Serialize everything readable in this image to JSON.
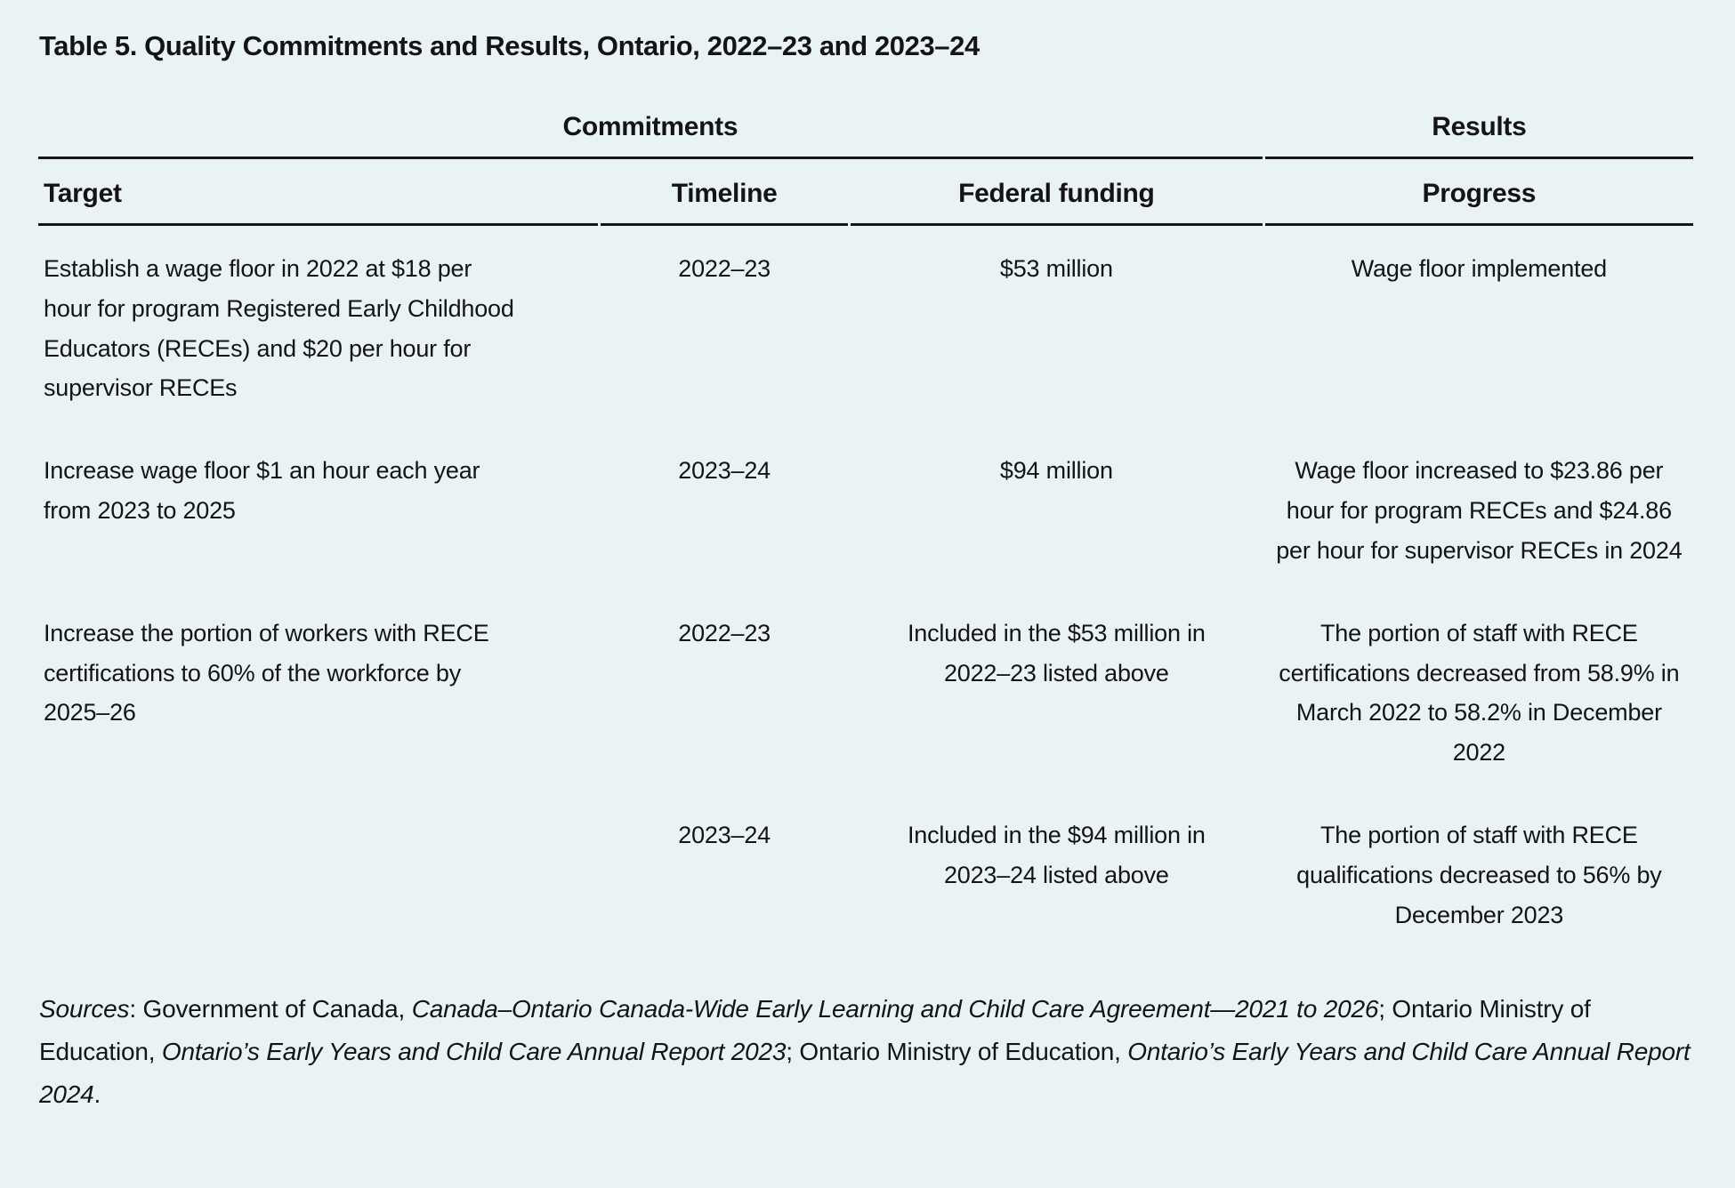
{
  "page": {
    "title": "Table 5. Quality Commitments and Results, Ontario, 2022–23 and 2023–24"
  },
  "colors": {
    "background": "#e9f3f5",
    "text": "#141414",
    "rule": "#161616"
  },
  "table": {
    "section_headers": {
      "commitments": "Commitments",
      "results": "Results"
    },
    "column_headers": {
      "target": "Target",
      "timeline": "Timeline",
      "federal_funding": "Federal funding",
      "progress": "Progress"
    },
    "rows": [
      {
        "target": "Establish a wage floor in 2022 at $18 per hour for program Registered Early Childhood Educators (RECEs) and $20 per hour for supervisor RECEs",
        "timeline": "2022–23",
        "federal_funding": "$53 million",
        "progress": "Wage floor implemented"
      },
      {
        "target": "Increase wage floor $1 an hour each year from 2023 to 2025",
        "timeline": "2023–24",
        "federal_funding": "$94 million",
        "progress": "Wage floor increased to $23.86 per hour for program RECEs and $24.86 per hour for supervisor RECEs in 2024"
      },
      {
        "target": "Increase the portion of workers with RECE certifications to 60% of the workforce by 2025–26",
        "timeline": "2022–23",
        "federal_funding": "Included in the $53 million in 2022–23 listed above",
        "progress": "The portion of staff with RECE certifications decreased from 58.9% in March 2022 to 58.2% in December 2022"
      },
      {
        "target": "",
        "timeline": "2023–24",
        "federal_funding": "Included in the $94 million in 2023–24 listed above",
        "progress": "The portion of staff with RECE qualifications decreased to 56% by December 2023"
      }
    ]
  },
  "sources": {
    "segments": [
      {
        "text": "Sources",
        "italic": true
      },
      {
        "text": ": Government of Canada, ",
        "italic": false
      },
      {
        "text": "Canada–Ontario Canada-Wide Early Learning and Child Care Agreement—2021 to 2026",
        "italic": true
      },
      {
        "text": "; Ontario Ministry of Education, ",
        "italic": false
      },
      {
        "text": "Ontario’s Early Years and Child Care Annual Report 2023",
        "italic": true
      },
      {
        "text": "; Ontario Ministry of Education, ",
        "italic": false
      },
      {
        "text": "Ontario’s Early Years and Child Care Annual Report 2024",
        "italic": true
      },
      {
        "text": ".",
        "italic": false
      }
    ]
  }
}
